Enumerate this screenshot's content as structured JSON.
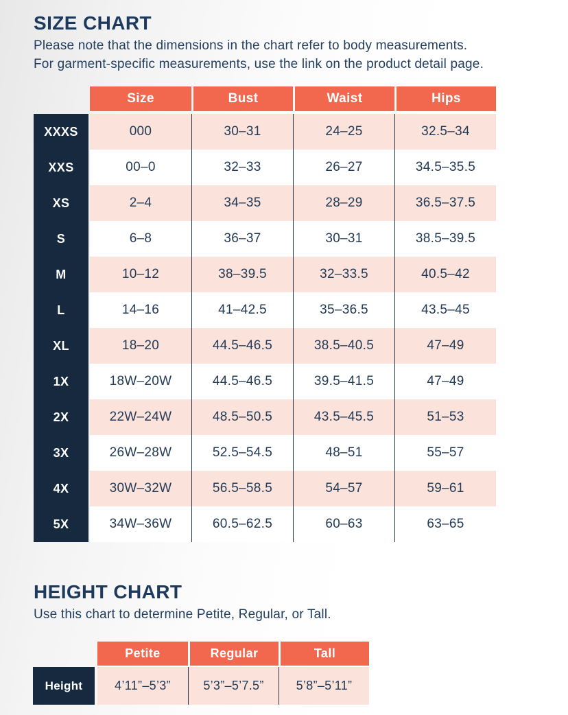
{
  "colors": {
    "coral": "#f2684f",
    "navy": "#16293e",
    "pink": "#fbe3dc",
    "heading_text": "#1d3a5c",
    "cell_text": "#233a55"
  },
  "size_chart": {
    "title": "SIZE CHART",
    "subtitle": [
      "Please note that the dimensions in the chart refer to body measurements.",
      "For garment-specific measurements, use the link on the product detail page."
    ],
    "columns": [
      "Size",
      "Bust",
      "Waist",
      "Hips"
    ],
    "rows": [
      {
        "label": "XXXS",
        "values": [
          "000",
          "30–31",
          "24–25",
          "32.5–34"
        ]
      },
      {
        "label": "XXS",
        "values": [
          "00–0",
          "32–33",
          "26–27",
          "34.5–35.5"
        ]
      },
      {
        "label": "XS",
        "values": [
          "2–4",
          "34–35",
          "28–29",
          "36.5–37.5"
        ]
      },
      {
        "label": "S",
        "values": [
          "6–8",
          "36–37",
          "30–31",
          "38.5–39.5"
        ]
      },
      {
        "label": "M",
        "values": [
          "10–12",
          "38–39.5",
          "32–33.5",
          "40.5–42"
        ]
      },
      {
        "label": "L",
        "values": [
          "14–16",
          "41–42.5",
          "35–36.5",
          "43.5–45"
        ]
      },
      {
        "label": "XL",
        "values": [
          "18–20",
          "44.5–46.5",
          "38.5–40.5",
          "47–49"
        ]
      },
      {
        "label": "1X",
        "values": [
          "18W–20W",
          "44.5–46.5",
          "39.5–41.5",
          "47–49"
        ]
      },
      {
        "label": "2X",
        "values": [
          "22W–24W",
          "48.5–50.5",
          "43.5–45.5",
          "51–53"
        ]
      },
      {
        "label": "3X",
        "values": [
          "26W–28W",
          "52.5–54.5",
          "48–51",
          "55–57"
        ]
      },
      {
        "label": "4X",
        "values": [
          "30W–32W",
          "56.5–58.5",
          "54–57",
          "59–61"
        ]
      },
      {
        "label": "5X",
        "values": [
          "34W–36W",
          "60.5–62.5",
          "60–63",
          "63–65"
        ]
      }
    ]
  },
  "height_chart": {
    "title": "HEIGHT CHART",
    "subtitle": "Use this chart to determine Petite, Regular, or Tall.",
    "columns": [
      "Petite",
      "Regular",
      "Tall"
    ],
    "row_label": "Height",
    "values": [
      "4’11”–5’3”",
      "5’3”–5’7.5”",
      "5’8”–5’11”"
    ]
  }
}
